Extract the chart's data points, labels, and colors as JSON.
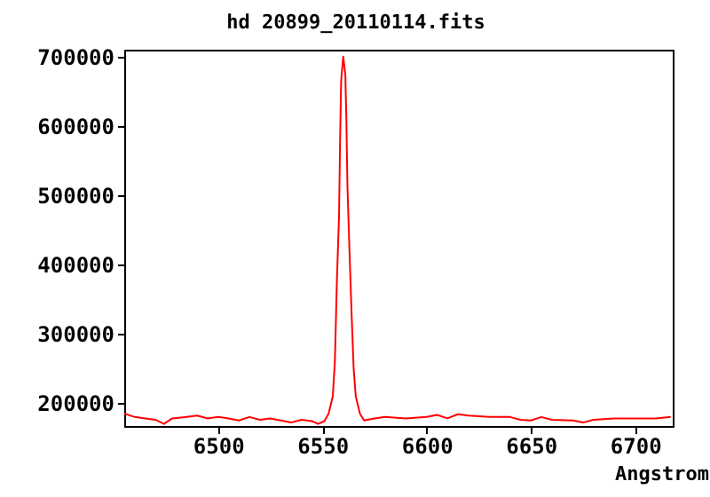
{
  "chart_data": {
    "type": "line",
    "title": "hd 20899_20110114.fits",
    "xlabel": "Angstrom",
    "x": [
      6455,
      6460,
      6465,
      6470,
      6474,
      6478,
      6485,
      6490,
      6495,
      6500,
      6505,
      6510,
      6515,
      6520,
      6525,
      6530,
      6535,
      6540,
      6545,
      6548,
      6551,
      6553,
      6555,
      6556,
      6557,
      6558,
      6558.5,
      6559,
      6560,
      6561,
      6561.5,
      6562,
      6563,
      6564,
      6565,
      6566,
      6568,
      6570,
      6575,
      6580,
      6590,
      6600,
      6605,
      6610,
      6615,
      6620,
      6630,
      6640,
      6645,
      6650,
      6655,
      6660,
      6670,
      6675,
      6680,
      6690,
      6700,
      6710,
      6717
    ],
    "series": [
      {
        "color": "#ff0000",
        "values": [
          185000,
          180000,
          178000,
          176000,
          170000,
          178000,
          180000,
          182000,
          178000,
          180000,
          178000,
          175000,
          180000,
          176000,
          178000,
          175000,
          172000,
          176000,
          174000,
          170000,
          174000,
          185000,
          210000,
          260000,
          380000,
          470000,
          580000,
          665000,
          700000,
          675000,
          610000,
          515000,
          420000,
          330000,
          250000,
          210000,
          185000,
          175000,
          178000,
          180000,
          178000,
          180000,
          183000,
          178000,
          184000,
          182000,
          180000,
          180000,
          176000,
          175000,
          180000,
          176000,
          175000,
          172000,
          176000,
          178000,
          178000,
          178000,
          180000
        ]
      }
    ],
    "xlim": [
      6455,
      6718
    ],
    "xticks": [
      6500,
      6550,
      6600,
      6650,
      6700
    ],
    "ylim": [
      167000,
      710000
    ],
    "yticks": [
      200000,
      300000,
      400000,
      500000,
      600000,
      700000
    ],
    "grid": false,
    "marker": "none",
    "line_style": "solid"
  }
}
